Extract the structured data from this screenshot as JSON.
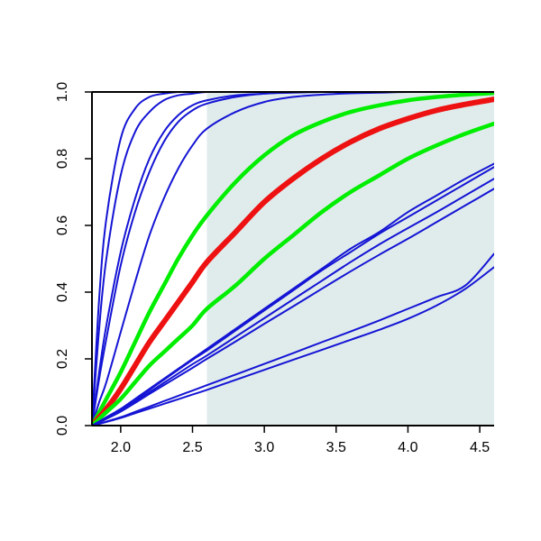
{
  "chart_data": {
    "type": "line",
    "title": "",
    "xlabel": "",
    "ylabel": "",
    "xlim": [
      1.8,
      4.6
    ],
    "ylim": [
      0,
      1
    ],
    "grid": false,
    "legend": "none",
    "x_ticks": [
      2.0,
      2.5,
      3.0,
      3.5,
      4.0,
      4.5
    ],
    "x_tick_labels": [
      "2.0",
      "2.5",
      "3.0",
      "3.5",
      "4.0",
      "4.5"
    ],
    "y_ticks": [
      0.0,
      0.2,
      0.4,
      0.6,
      0.8,
      1.0
    ],
    "y_tick_labels": [
      "0.0",
      "0.2",
      "0.4",
      "0.6",
      "0.8",
      "1.0"
    ],
    "shaded_region": {
      "x": [
        2.6,
        4.6
      ],
      "y": [
        0,
        1
      ],
      "color": "#e0ecec"
    },
    "colors": {
      "blue": "#1414d4",
      "green": "#00ee00",
      "red": "#ee1111"
    },
    "x": [
      1.8,
      1.85,
      1.9,
      2.0,
      2.1,
      2.2,
      2.3,
      2.4,
      2.5,
      2.6,
      2.8,
      3.0,
      3.2,
      3.4,
      3.6,
      3.8,
      4.0,
      4.2,
      4.4,
      4.6
    ],
    "series": [
      {
        "color": "blue",
        "values": [
          0,
          0.38,
          0.62,
          0.86,
          0.95,
          0.985,
          0.995,
          1,
          1,
          1,
          1,
          1,
          1,
          1,
          1,
          1,
          1,
          1,
          1,
          1
        ]
      },
      {
        "color": "blue",
        "values": [
          0,
          0.29,
          0.5,
          0.75,
          0.88,
          0.94,
          0.975,
          0.99,
          0.995,
          1,
          1,
          1,
          1,
          1,
          1,
          1,
          1,
          1,
          1,
          1
        ]
      },
      {
        "color": "blue",
        "values": [
          0,
          0.16,
          0.3,
          0.52,
          0.68,
          0.8,
          0.88,
          0.93,
          0.96,
          0.975,
          0.99,
          0.995,
          1,
          1,
          1,
          1,
          1,
          1,
          1,
          1
        ]
      },
      {
        "color": "blue",
        "values": [
          0,
          0.14,
          0.26,
          0.48,
          0.64,
          0.76,
          0.85,
          0.91,
          0.945,
          0.965,
          0.985,
          0.995,
          0.998,
          1,
          1,
          1,
          1,
          1,
          1,
          1
        ]
      },
      {
        "color": "blue",
        "values": [
          0,
          0.07,
          0.13,
          0.28,
          0.43,
          0.57,
          0.68,
          0.77,
          0.84,
          0.89,
          0.94,
          0.97,
          0.985,
          0.992,
          0.996,
          0.998,
          1,
          1,
          1,
          1
        ]
      },
      {
        "color": "green",
        "width": 4.5,
        "values": [
          0,
          0.04,
          0.08,
          0.16,
          0.25,
          0.34,
          0.42,
          0.5,
          0.57,
          0.63,
          0.73,
          0.81,
          0.87,
          0.91,
          0.94,
          0.96,
          0.975,
          0.985,
          0.992,
          0.997
        ]
      },
      {
        "color": "red",
        "width": 6,
        "values": [
          0,
          0.025,
          0.05,
          0.11,
          0.18,
          0.25,
          0.31,
          0.37,
          0.43,
          0.49,
          0.58,
          0.67,
          0.74,
          0.8,
          0.85,
          0.89,
          0.92,
          0.945,
          0.963,
          0.978
        ]
      },
      {
        "color": "green",
        "width": 4.5,
        "values": [
          0,
          0.02,
          0.04,
          0.08,
          0.13,
          0.18,
          0.22,
          0.26,
          0.3,
          0.35,
          0.42,
          0.5,
          0.57,
          0.64,
          0.7,
          0.75,
          0.8,
          0.84,
          0.875,
          0.905
        ]
      },
      {
        "color": "blue",
        "values": [
          0,
          0.012,
          0.025,
          0.05,
          0.08,
          0.11,
          0.14,
          0.17,
          0.2,
          0.23,
          0.29,
          0.35,
          0.41,
          0.47,
          0.53,
          0.58,
          0.64,
          0.69,
          0.74,
          0.785
        ]
      },
      {
        "color": "blue",
        "values": [
          0,
          0.012,
          0.024,
          0.048,
          0.077,
          0.107,
          0.137,
          0.167,
          0.197,
          0.225,
          0.285,
          0.345,
          0.405,
          0.465,
          0.52,
          0.575,
          0.625,
          0.675,
          0.725,
          0.775
        ]
      },
      {
        "color": "blue",
        "values": [
          0,
          0.011,
          0.022,
          0.045,
          0.072,
          0.1,
          0.128,
          0.156,
          0.184,
          0.21,
          0.266,
          0.322,
          0.378,
          0.434,
          0.49,
          0.543,
          0.592,
          0.64,
          0.69,
          0.74
        ]
      },
      {
        "color": "blue",
        "values": [
          0,
          0.01,
          0.02,
          0.042,
          0.068,
          0.095,
          0.121,
          0.147,
          0.173,
          0.2,
          0.252,
          0.305,
          0.357,
          0.41,
          0.462,
          0.512,
          0.56,
          0.61,
          0.66,
          0.71
        ]
      },
      {
        "color": "blue",
        "values": [
          0,
          0.006,
          0.012,
          0.025,
          0.041,
          0.057,
          0.073,
          0.089,
          0.105,
          0.121,
          0.153,
          0.185,
          0.217,
          0.25,
          0.282,
          0.315,
          0.35,
          0.385,
          0.42,
          0.515
        ]
      },
      {
        "color": "blue",
        "values": [
          0,
          0.005,
          0.011,
          0.023,
          0.037,
          0.051,
          0.065,
          0.079,
          0.093,
          0.107,
          0.137,
          0.167,
          0.197,
          0.227,
          0.257,
          0.287,
          0.32,
          0.36,
          0.41,
          0.475
        ]
      }
    ]
  }
}
